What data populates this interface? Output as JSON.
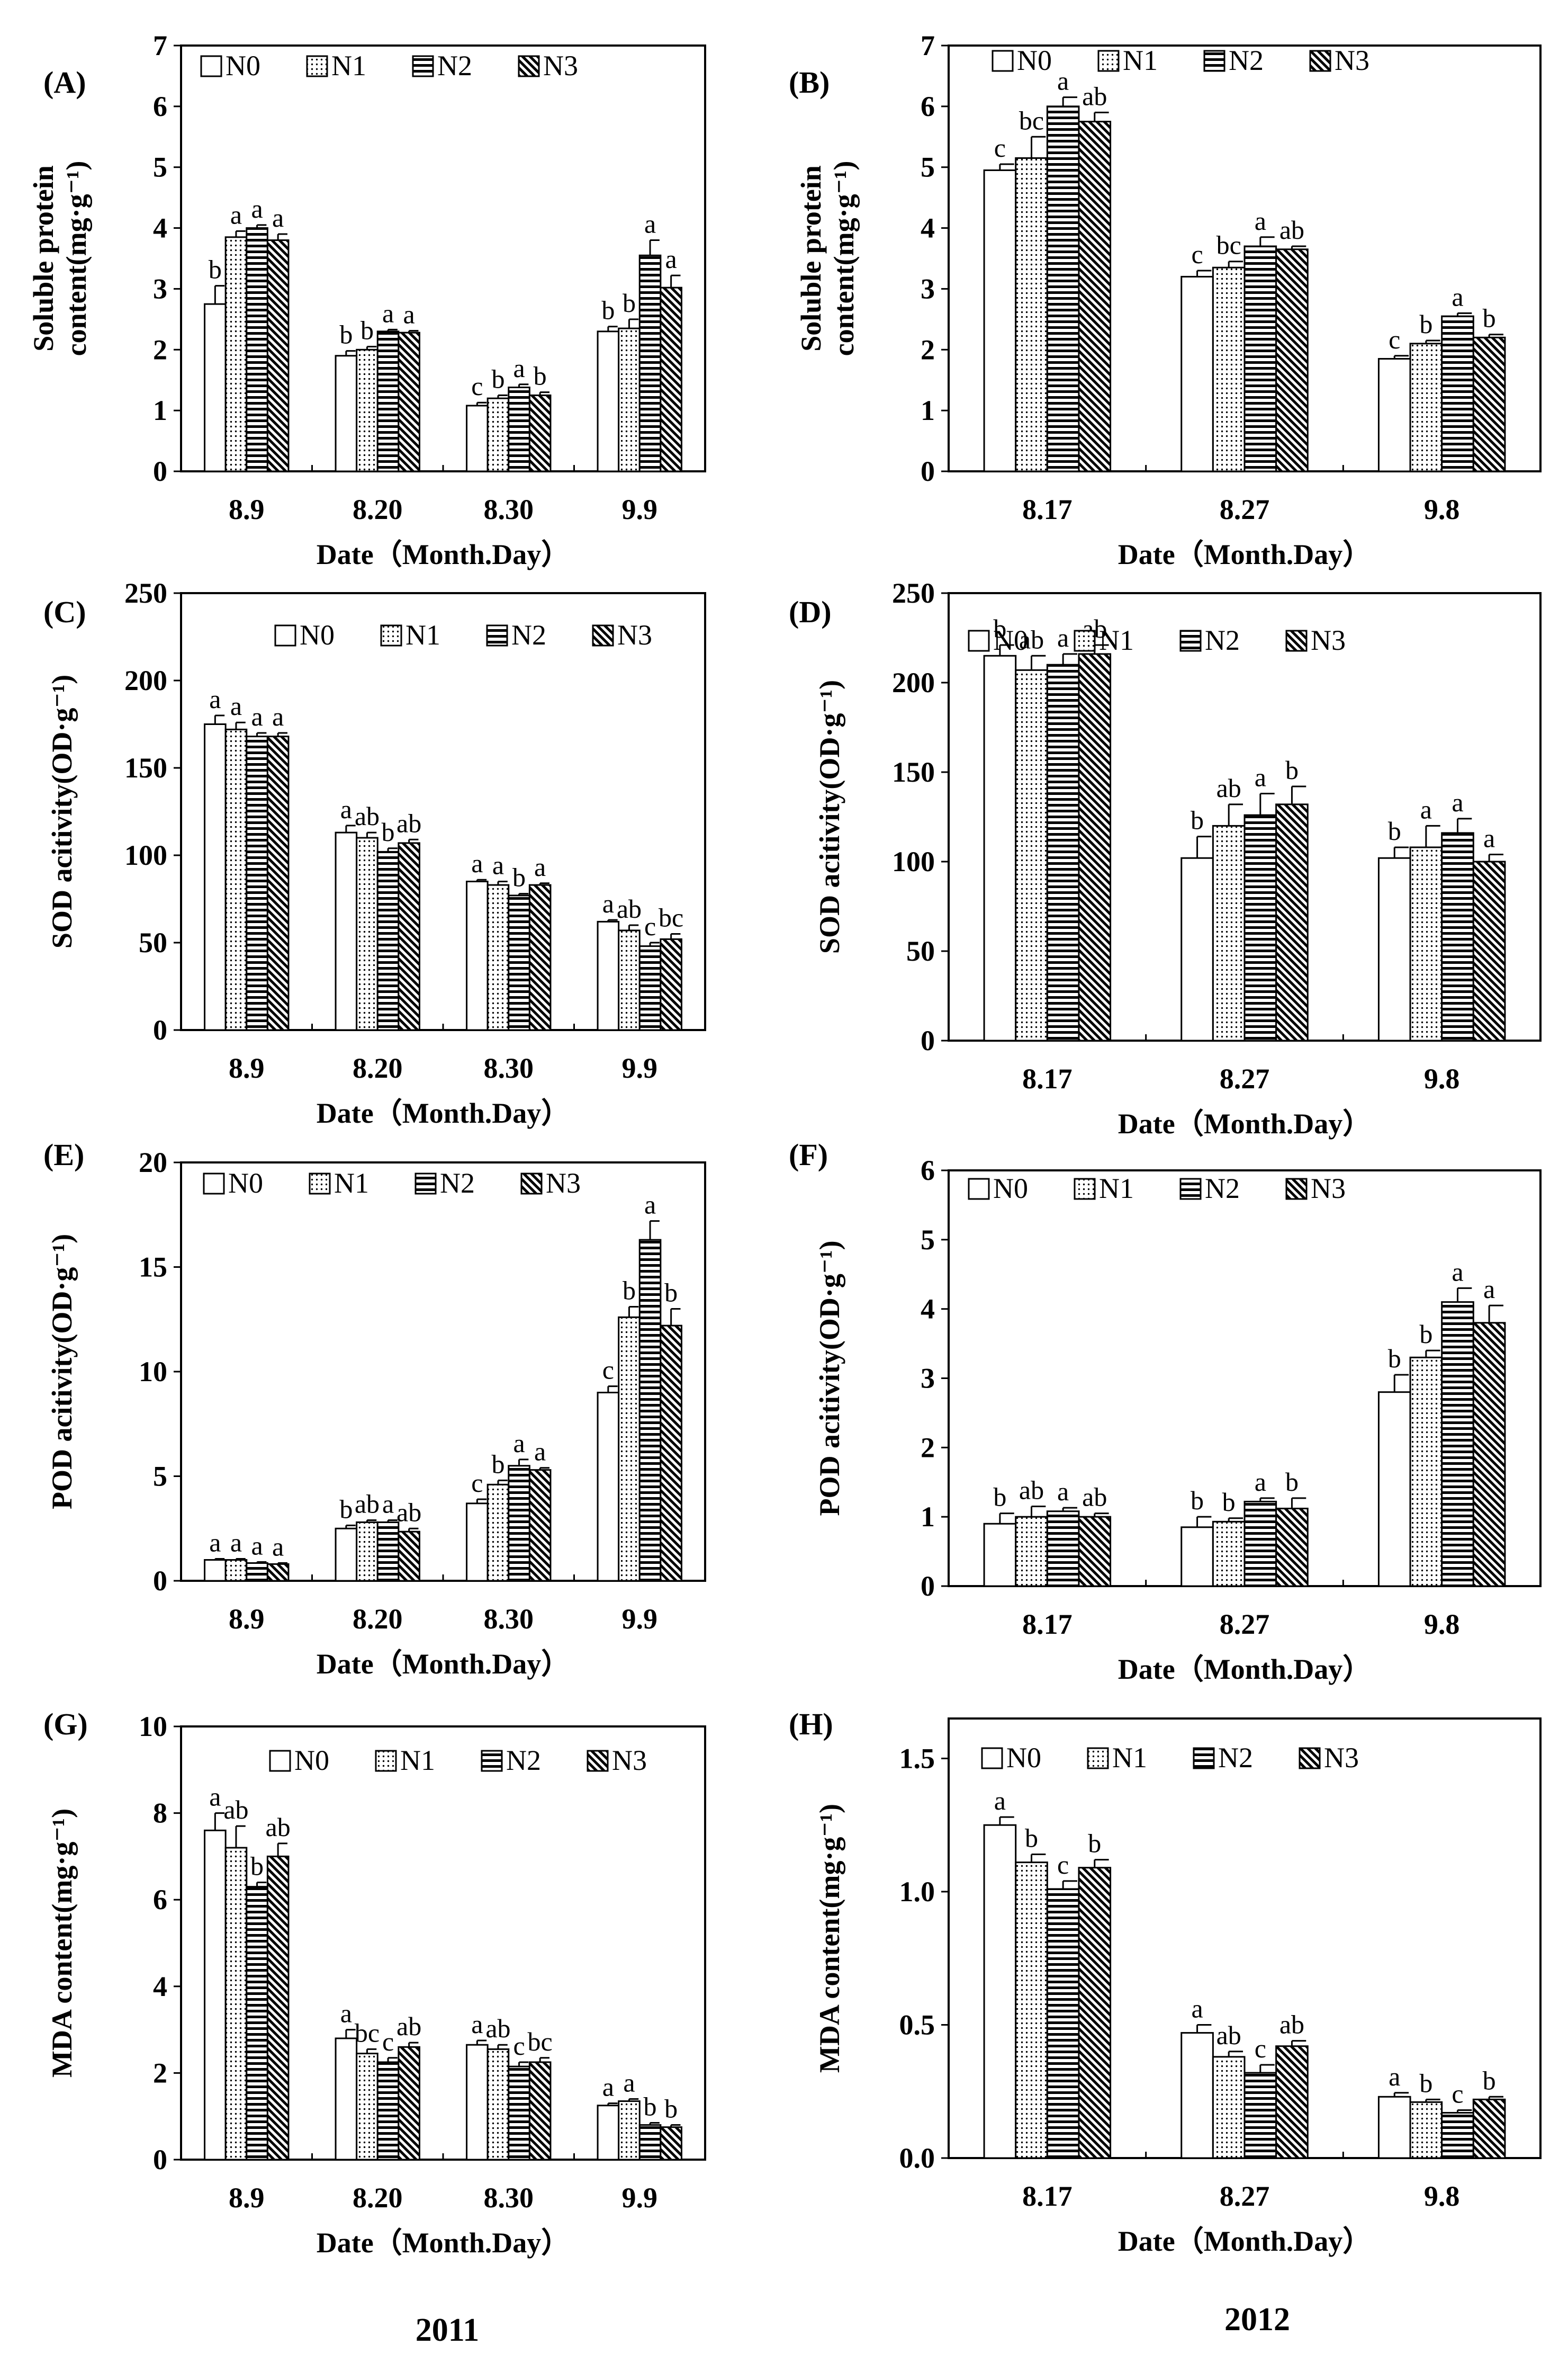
{
  "legend": [
    "N0",
    "N1",
    "N2",
    "N3"
  ],
  "years": {
    "left": "2011",
    "right": "2012"
  },
  "chart_data": [
    {
      "id": "A",
      "panel_label": "(A)",
      "type": "bar",
      "ylabel": [
        "Soluble protein",
        "content(mg·g⁻¹)"
      ],
      "xlabel": "Date（Month.Day）",
      "ylim": [
        0,
        7
      ],
      "yticks": [
        0,
        1,
        2,
        3,
        4,
        5,
        6,
        7
      ],
      "ytick_labels": [
        "0",
        "1",
        "2",
        "3",
        "4",
        "5",
        "6",
        "7"
      ],
      "categories": [
        "8.9",
        "8.20",
        "8.30",
        "9.9"
      ],
      "series": [
        {
          "name": "N0",
          "values": [
            2.75,
            1.9,
            1.08,
            2.3
          ],
          "errors": [
            0.3,
            0.08,
            0.05,
            0.08
          ],
          "letters": [
            "b",
            "b",
            "c",
            "b"
          ]
        },
        {
          "name": "N1",
          "values": [
            3.85,
            2.0,
            1.2,
            2.35
          ],
          "errors": [
            0.1,
            0.05,
            0.05,
            0.15
          ],
          "letters": [
            "a",
            "b",
            "b",
            "b"
          ]
        },
        {
          "name": "N2",
          "values": [
            4.0,
            2.3,
            1.38,
            3.55
          ],
          "errors": [
            0.05,
            0.03,
            0.05,
            0.25
          ],
          "letters": [
            "a",
            "a",
            "a",
            "a"
          ]
        },
        {
          "name": "N3",
          "values": [
            3.8,
            2.28,
            1.25,
            3.02
          ],
          "errors": [
            0.1,
            0.03,
            0.05,
            0.2
          ],
          "letters": [
            "a",
            "a",
            "b",
            "a"
          ]
        }
      ]
    },
    {
      "id": "B",
      "panel_label": "(B)",
      "type": "bar",
      "ylabel": [
        "Soluble protein",
        "content(mg·g⁻¹)"
      ],
      "xlabel": "Date（Month.Day）",
      "ylim": [
        0,
        7
      ],
      "yticks": [
        0,
        1,
        2,
        3,
        4,
        5,
        6,
        7
      ],
      "ytick_labels": [
        "0",
        "1",
        "2",
        "3",
        "4",
        "5",
        "6",
        "7"
      ],
      "categories": [
        "8.17",
        "8.27",
        "9.8"
      ],
      "series": [
        {
          "name": "N0",
          "values": [
            4.95,
            3.2,
            1.85
          ],
          "errors": [
            0.1,
            0.1,
            0.05
          ],
          "letters": [
            "c",
            "c",
            "c"
          ]
        },
        {
          "name": "N1",
          "values": [
            5.15,
            3.35,
            2.1
          ],
          "errors": [
            0.35,
            0.1,
            0.05
          ],
          "letters": [
            "bc",
            "bc",
            "b"
          ]
        },
        {
          "name": "N2",
          "values": [
            6.0,
            3.7,
            2.55
          ],
          "errors": [
            0.15,
            0.15,
            0.05
          ],
          "letters": [
            "a",
            "a",
            "a"
          ]
        },
        {
          "name": "N3",
          "values": [
            5.75,
            3.65,
            2.2
          ],
          "errors": [
            0.15,
            0.05,
            0.05
          ],
          "letters": [
            "ab",
            "ab",
            "b"
          ]
        }
      ]
    },
    {
      "id": "C",
      "panel_label": "(C)",
      "type": "bar",
      "ylabel": [
        "SOD acitivity(OD·g⁻¹)"
      ],
      "xlabel": "Date（Month.Day）",
      "ylim": [
        0,
        250
      ],
      "yticks": [
        0,
        50,
        100,
        150,
        200,
        250
      ],
      "ytick_labels": [
        "0",
        "50",
        "100",
        "150",
        "200",
        "250"
      ],
      "categories": [
        "8.9",
        "8.20",
        "8.30",
        "9.9"
      ],
      "series": [
        {
          "name": "N0",
          "values": [
            175,
            113,
            85,
            62
          ],
          "errors": [
            5,
            4,
            1,
            1
          ],
          "letters": [
            "a",
            "a",
            "a",
            "a"
          ]
        },
        {
          "name": "N1",
          "values": [
            172,
            110,
            83,
            57
          ],
          "errors": [
            4,
            3,
            2,
            3
          ],
          "letters": [
            "a",
            "ab",
            "a",
            "ab"
          ]
        },
        {
          "name": "N2",
          "values": [
            168,
            102,
            77,
            48
          ],
          "errors": [
            2,
            2,
            1,
            2
          ],
          "letters": [
            "a",
            "b",
            "b",
            "c"
          ]
        },
        {
          "name": "N3",
          "values": [
            168,
            107,
            83,
            52
          ],
          "errors": [
            2,
            2,
            1,
            3
          ],
          "letters": [
            "a",
            "ab",
            "a",
            "bc"
          ]
        }
      ]
    },
    {
      "id": "D",
      "panel_label": "(D)",
      "type": "bar",
      "ylabel": [
        "SOD acitivity(OD·g⁻¹)"
      ],
      "xlabel": "Date（Month.Day）",
      "ylim": [
        0,
        250
      ],
      "yticks": [
        0,
        50,
        100,
        150,
        200,
        250
      ],
      "ytick_labels": [
        "0",
        "50",
        "100",
        "150",
        "200",
        "250"
      ],
      "categories": [
        "8.17",
        "8.27",
        "9.8"
      ],
      "series": [
        {
          "name": "N0",
          "values": [
            215,
            102,
            102
          ],
          "errors": [
            6,
            12,
            6
          ],
          "letters": [
            "b",
            "b",
            "b"
          ]
        },
        {
          "name": "N1",
          "values": [
            207,
            120,
            108
          ],
          "errors": [
            8,
            12,
            12
          ],
          "letters": [
            "ab",
            "ab",
            "a"
          ]
        },
        {
          "name": "N2",
          "values": [
            210,
            126,
            116
          ],
          "errors": [
            6,
            12,
            8
          ],
          "letters": [
            "a",
            "a",
            "a"
          ]
        },
        {
          "name": "N3",
          "values": [
            216,
            132,
            100
          ],
          "errors": [
            5,
            10,
            4
          ],
          "letters": [
            "ab",
            "b",
            "a"
          ]
        }
      ]
    },
    {
      "id": "E",
      "panel_label": "(E)",
      "type": "bar",
      "ylabel": [
        "POD acitivity(OD·g⁻¹)"
      ],
      "xlabel": "Date（Month.Day）",
      "ylim": [
        0,
        20
      ],
      "yticks": [
        0,
        5,
        10,
        15,
        20
      ],
      "ytick_labels": [
        "0",
        "5",
        "10",
        "15",
        "20"
      ],
      "categories": [
        "8.9",
        "8.20",
        "8.30",
        "9.9"
      ],
      "series": [
        {
          "name": "N0",
          "values": [
            1.0,
            2.5,
            3.7,
            9.0
          ],
          "errors": [
            0.05,
            0.15,
            0.2,
            0.3
          ],
          "letters": [
            "a",
            "b",
            "c",
            "c"
          ]
        },
        {
          "name": "N1",
          "values": [
            1.0,
            2.8,
            4.6,
            12.6
          ],
          "errors": [
            0.05,
            0.1,
            0.2,
            0.5
          ],
          "letters": [
            "a",
            "ab",
            "b",
            "b"
          ]
        },
        {
          "name": "N2",
          "values": [
            0.85,
            2.8,
            5.5,
            16.3
          ],
          "errors": [
            0.05,
            0.1,
            0.3,
            0.9
          ],
          "letters": [
            "a",
            "a",
            "a",
            "a"
          ]
        },
        {
          "name": "N3",
          "values": [
            0.8,
            2.35,
            5.3,
            12.2
          ],
          "errors": [
            0.05,
            0.15,
            0.1,
            0.8
          ],
          "letters": [
            "a",
            "ab",
            "a",
            "b"
          ]
        }
      ]
    },
    {
      "id": "F",
      "panel_label": "(F)",
      "type": "bar",
      "ylabel": [
        "POD acitivity(OD·g⁻¹)"
      ],
      "xlabel": "Date（Month.Day）",
      "ylim": [
        0,
        6
      ],
      "yticks": [
        0,
        1,
        2,
        3,
        4,
        5,
        6
      ],
      "ytick_labels": [
        "0",
        "1",
        "2",
        "3",
        "4",
        "5",
        "6"
      ],
      "categories": [
        "8.17",
        "8.27",
        "9.8"
      ],
      "series": [
        {
          "name": "N0",
          "values": [
            0.9,
            0.85,
            2.8
          ],
          "errors": [
            0.15,
            0.15,
            0.25
          ],
          "letters": [
            "b",
            "b",
            "b"
          ]
        },
        {
          "name": "N1",
          "values": [
            1.0,
            0.93,
            3.3
          ],
          "errors": [
            0.15,
            0.05,
            0.1
          ],
          "letters": [
            "ab",
            "b",
            "b"
          ]
        },
        {
          "name": "N2",
          "values": [
            1.08,
            1.22,
            4.1
          ],
          "errors": [
            0.05,
            0.05,
            0.2
          ],
          "letters": [
            "a",
            "a",
            "a"
          ]
        },
        {
          "name": "N3",
          "values": [
            1.0,
            1.12,
            3.8
          ],
          "errors": [
            0.05,
            0.15,
            0.25
          ],
          "letters": [
            "ab",
            "b",
            "a"
          ]
        }
      ]
    },
    {
      "id": "G",
      "panel_label": "(G)",
      "type": "bar",
      "ylabel": [
        "MDA content(mg·g⁻¹)"
      ],
      "xlabel": "Date（Month.Day）",
      "ylim": [
        0,
        10
      ],
      "yticks": [
        0,
        2,
        4,
        6,
        8,
        10
      ],
      "ytick_labels": [
        "0",
        "2",
        "4",
        "6",
        "8",
        "10"
      ],
      "categories": [
        "8.9",
        "8.20",
        "8.30",
        "9.9"
      ],
      "series": [
        {
          "name": "N0",
          "values": [
            7.6,
            2.8,
            2.65,
            1.25
          ],
          "errors": [
            0.4,
            0.2,
            0.1,
            0.05
          ],
          "letters": [
            "a",
            "a",
            "a",
            "a"
          ]
        },
        {
          "name": "N1",
          "values": [
            7.2,
            2.45,
            2.55,
            1.35
          ],
          "errors": [
            0.5,
            0.1,
            0.1,
            0.05
          ],
          "letters": [
            "ab",
            "bc",
            "ab",
            "a"
          ]
        },
        {
          "name": "N2",
          "values": [
            6.3,
            2.25,
            2.15,
            0.8
          ],
          "errors": [
            0.1,
            0.1,
            0.1,
            0.05
          ],
          "letters": [
            "b",
            "c",
            "c",
            "b"
          ]
        },
        {
          "name": "N3",
          "values": [
            7.0,
            2.6,
            2.25,
            0.75
          ],
          "errors": [
            0.3,
            0.1,
            0.1,
            0.05
          ],
          "letters": [
            "ab",
            "ab",
            "bc",
            "b"
          ]
        }
      ]
    },
    {
      "id": "H",
      "panel_label": "(H)",
      "type": "bar",
      "ylabel": [
        "MDA content(mg·g⁻¹)"
      ],
      "xlabel": "Date（Month.Day）",
      "ylim": [
        0,
        1.65
      ],
      "yticks": [
        0,
        0.5,
        1.0,
        1.5
      ],
      "ytick_labels": [
        "0.0",
        "0.5",
        "1.0",
        "1.5"
      ],
      "categories": [
        "8.17",
        "8.27",
        "9.8"
      ],
      "series": [
        {
          "name": "N0",
          "values": [
            1.25,
            0.47,
            0.23
          ],
          "errors": [
            0.03,
            0.03,
            0.015
          ],
          "letters": [
            "a",
            "a",
            "a"
          ]
        },
        {
          "name": "N1",
          "values": [
            1.11,
            0.38,
            0.21
          ],
          "errors": [
            0.03,
            0.02,
            0.01
          ],
          "letters": [
            "b",
            "ab",
            "b"
          ]
        },
        {
          "name": "N2",
          "values": [
            1.01,
            0.32,
            0.17
          ],
          "errors": [
            0.03,
            0.03,
            0.01
          ],
          "letters": [
            "c",
            "c",
            "c"
          ]
        },
        {
          "name": "N3",
          "values": [
            1.09,
            0.42,
            0.22
          ],
          "errors": [
            0.03,
            0.02,
            0.01
          ],
          "letters": [
            "b",
            "ab",
            "b"
          ]
        }
      ]
    }
  ]
}
